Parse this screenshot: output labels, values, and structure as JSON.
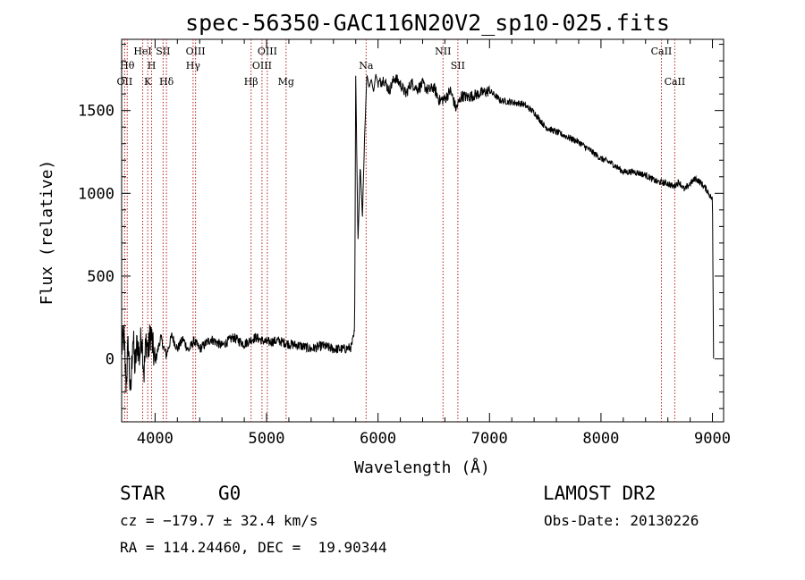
{
  "chart_data": {
    "type": "line",
    "title": "spec-56350-GAC116N20V2_sp10-025.fits",
    "xlabel": "Wavelength (Å)",
    "ylabel": "Flux (relative)",
    "xlim": [
      3700,
      9100
    ],
    "ylim": [
      -380,
      1930
    ],
    "xticks": [
      4000,
      5000,
      6000,
      7000,
      8000,
      9000
    ],
    "yticks": [
      0,
      500,
      1000,
      1500
    ],
    "x_tick_labels": [
      "4000",
      "5000",
      "6000",
      "7000",
      "8000",
      "9000"
    ],
    "y_tick_labels": [
      "0",
      "500",
      "1000",
      "1500"
    ],
    "grid": false,
    "line_color": "#000000",
    "marker_color": "#b22222",
    "series": [
      {
        "x": [
          3700,
          3720,
          3740,
          3760,
          3780,
          3800,
          3820,
          3840,
          3860,
          3880,
          3900,
          3920,
          3940,
          3960,
          3980,
          4000,
          4050,
          4100,
          4150,
          4200,
          4250,
          4300,
          4350,
          4400,
          4500,
          4600,
          4700,
          4800,
          4900,
          5000,
          5100,
          5200,
          5300,
          5400,
          5500,
          5600,
          5700,
          5760,
          5790,
          5800,
          5820,
          5840,
          5860,
          5880,
          5900,
          5920,
          5940,
          5960,
          5980,
          6000,
          6050,
          6100,
          6150,
          6200,
          6250,
          6300,
          6350,
          6400,
          6450,
          6500,
          6550,
          6600,
          6650,
          6700,
          6750,
          6800,
          6900,
          7000,
          7100,
          7200,
          7300,
          7400,
          7500,
          7600,
          7700,
          7800,
          7900,
          8000,
          8100,
          8200,
          8300,
          8400,
          8500,
          8600,
          8650,
          8700,
          8750,
          8800,
          8850,
          8900,
          8950,
          9000,
          9010
        ],
        "y": [
          60,
          130,
          -150,
          100,
          -250,
          150,
          -60,
          110,
          10,
          160,
          -90,
          120,
          40,
          170,
          60,
          -20,
          130,
          20,
          140,
          60,
          120,
          50,
          110,
          60,
          120,
          80,
          130,
          90,
          130,
          100,
          110,
          90,
          80,
          60,
          80,
          60,
          60,
          70,
          160,
          1710,
          700,
          1170,
          860,
          1350,
          1720,
          1640,
          1690,
          1610,
          1720,
          1660,
          1690,
          1620,
          1700,
          1660,
          1600,
          1670,
          1630,
          1660,
          1620,
          1640,
          1560,
          1570,
          1620,
          1510,
          1590,
          1580,
          1600,
          1620,
          1560,
          1550,
          1540,
          1490,
          1400,
          1370,
          1340,
          1310,
          1260,
          1210,
          1180,
          1130,
          1130,
          1110,
          1070,
          1060,
          1040,
          1070,
          1020,
          1060,
          1090,
          1060,
          1020,
          960,
          10
        ]
      }
    ],
    "line_markers": [
      {
        "label": "OII",
        "x": 3727,
        "row": 3
      },
      {
        "label": "Hθ",
        "x": 3750,
        "row": 2
      },
      {
        "label": "HeI",
        "x": 3889,
        "row": 1
      },
      {
        "label": "K",
        "x": 3934,
        "row": 3
      },
      {
        "label": "SII",
        "x": 4072,
        "row": 1
      },
      {
        "label": "H",
        "x": 3969,
        "row": 2
      },
      {
        "label": "Hδ",
        "x": 4102,
        "row": 3
      },
      {
        "label": "OIII",
        "x": 4363,
        "row": 1
      },
      {
        "label": "Hγ",
        "x": 4341,
        "row": 2
      },
      {
        "label": "Hβ",
        "x": 4861,
        "row": 3
      },
      {
        "label": "OIII",
        "x": 5007,
        "row": 1
      },
      {
        "label": "OIII",
        "x": 4959,
        "row": 2
      },
      {
        "label": "Mg",
        "x": 5175,
        "row": 3
      },
      {
        "label": "Na",
        "x": 5893,
        "row": 2
      },
      {
        "label": "NII",
        "x": 6583,
        "row": 1
      },
      {
        "label": "SII",
        "x": 6716,
        "row": 2
      },
      {
        "label": "CaII",
        "x": 8542,
        "row": 1
      },
      {
        "label": "CaII",
        "x": 8662,
        "row": 3
      }
    ]
  },
  "info": {
    "object_class": "STAR",
    "subclass": "G0",
    "survey": "LAMOST DR2",
    "redshift_line": "cz = −179.7 ± 32.4 km/s",
    "obs_date_line": "Obs-Date: 20130226",
    "coords_line": "RA = 114.24460, DEC =  19.90344"
  }
}
